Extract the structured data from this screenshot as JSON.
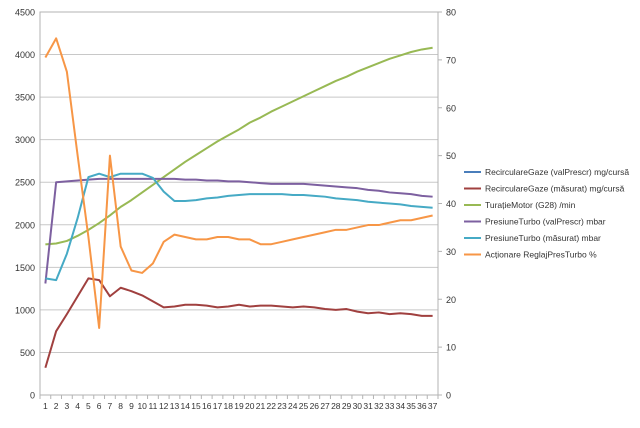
{
  "chart_data": {
    "type": "line",
    "title": "",
    "xlabel": "",
    "ylabel": "",
    "categories": [
      "1",
      "2",
      "3",
      "4",
      "5",
      "6",
      "7",
      "8",
      "9",
      "10",
      "11",
      "12",
      "13",
      "14",
      "15",
      "16",
      "17",
      "18",
      "19",
      "20",
      "21",
      "22",
      "23",
      "24",
      "25",
      "26",
      "27",
      "28",
      "29",
      "30",
      "31",
      "32",
      "33",
      "34",
      "35",
      "36",
      "37"
    ],
    "y_left": {
      "min": 0,
      "max": 4500,
      "step": 500
    },
    "y_right": {
      "min": 0,
      "max": 80,
      "step": 10
    },
    "grid": true,
    "legend_position": "right",
    "series": [
      {
        "name": "RecirculareGaze (valPrescr)  mg/cursă",
        "axis": "left",
        "color": "#4a7ebb",
        "values": [
          null,
          null,
          null,
          null,
          null,
          null,
          null,
          null,
          null,
          null,
          null,
          null,
          null,
          null,
          null,
          null,
          null,
          null,
          null,
          null,
          null,
          null,
          null,
          null,
          null,
          null,
          null,
          null,
          null,
          null,
          null,
          null,
          null,
          null,
          null,
          null,
          null
        ]
      },
      {
        "name": "RecirculareGaze (măsurat)  mg/cursă",
        "axis": "left",
        "color": "#a0403f",
        "values": [
          320,
          750,
          950,
          1160,
          1370,
          1350,
          1160,
          1260,
          1220,
          1170,
          1100,
          1030,
          1040,
          1060,
          1060,
          1050,
          1030,
          1040,
          1060,
          1040,
          1050,
          1050,
          1040,
          1030,
          1040,
          1030,
          1010,
          1000,
          1010,
          980,
          960,
          970,
          950,
          960,
          950,
          930,
          930
        ]
      },
      {
        "name": "TurațieMotor (G28)  /min",
        "axis": "left",
        "color": "#98b954",
        "values": [
          1770,
          1780,
          1810,
          1870,
          1940,
          2020,
          2110,
          2210,
          2290,
          2380,
          2470,
          2560,
          2650,
          2740,
          2820,
          2900,
          2980,
          3050,
          3120,
          3200,
          3260,
          3330,
          3390,
          3450,
          3510,
          3570,
          3630,
          3690,
          3740,
          3800,
          3850,
          3900,
          3950,
          3990,
          4030,
          4060,
          4080
        ]
      },
      {
        "name": "PresiuneTurbo (valPrescr)  mbar",
        "axis": "left",
        "color": "#7d60a0",
        "values": [
          1310,
          2500,
          2510,
          2520,
          2530,
          2540,
          2540,
          2540,
          2540,
          2540,
          2540,
          2540,
          2540,
          2530,
          2530,
          2520,
          2520,
          2510,
          2510,
          2500,
          2490,
          2480,
          2480,
          2480,
          2480,
          2470,
          2460,
          2450,
          2440,
          2430,
          2410,
          2400,
          2380,
          2370,
          2360,
          2340,
          2330
        ]
      },
      {
        "name": "PresiuneTurbo (măsurat)  mbar",
        "axis": "left",
        "color": "#46aac5",
        "values": [
          1370,
          1350,
          1660,
          2080,
          2560,
          2600,
          2560,
          2600,
          2600,
          2600,
          2550,
          2390,
          2280,
          2280,
          2290,
          2310,
          2320,
          2340,
          2350,
          2360,
          2360,
          2360,
          2360,
          2350,
          2350,
          2340,
          2330,
          2310,
          2300,
          2290,
          2270,
          2260,
          2250,
          2240,
          2220,
          2210,
          2200
        ]
      },
      {
        "name": "Acționare ReglajPresTurbo  %",
        "axis": "right",
        "color": "#f79646",
        "values": [
          70.5,
          74.5,
          67.5,
          50,
          33,
          14,
          50,
          31,
          26,
          25.5,
          27.5,
          32,
          33.5,
          33,
          32.5,
          32.5,
          33,
          33,
          32.5,
          32.5,
          31.5,
          31.5,
          32,
          32.5,
          33,
          33.5,
          34,
          34.5,
          34.5,
          35,
          35.5,
          35.5,
          36,
          36.5,
          36.5,
          37,
          37.5
        ]
      }
    ]
  }
}
